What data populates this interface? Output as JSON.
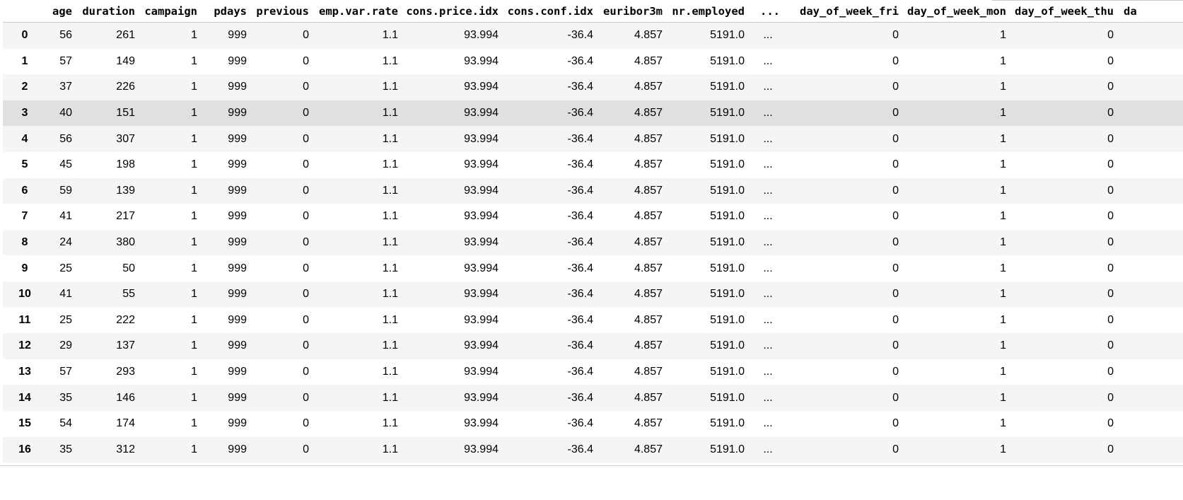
{
  "table": {
    "columns": [
      "",
      "age",
      "duration",
      "campaign",
      "pdays",
      "previous",
      "emp.var.rate",
      "cons.price.idx",
      "cons.conf.idx",
      "euribor3m",
      "nr.employed",
      "...",
      "day_of_week_fri",
      "day_of_week_mon",
      "day_of_week_thu",
      "da"
    ],
    "rows": [
      [
        "0",
        "56",
        "261",
        "1",
        "999",
        "0",
        "1.1",
        "93.994",
        "-36.4",
        "4.857",
        "5191.0",
        "...",
        "0",
        "1",
        "0",
        ""
      ],
      [
        "1",
        "57",
        "149",
        "1",
        "999",
        "0",
        "1.1",
        "93.994",
        "-36.4",
        "4.857",
        "5191.0",
        "...",
        "0",
        "1",
        "0",
        ""
      ],
      [
        "2",
        "37",
        "226",
        "1",
        "999",
        "0",
        "1.1",
        "93.994",
        "-36.4",
        "4.857",
        "5191.0",
        "...",
        "0",
        "1",
        "0",
        ""
      ],
      [
        "3",
        "40",
        "151",
        "1",
        "999",
        "0",
        "1.1",
        "93.994",
        "-36.4",
        "4.857",
        "5191.0",
        "...",
        "0",
        "1",
        "0",
        ""
      ],
      [
        "4",
        "56",
        "307",
        "1",
        "999",
        "0",
        "1.1",
        "93.994",
        "-36.4",
        "4.857",
        "5191.0",
        "...",
        "0",
        "1",
        "0",
        ""
      ],
      [
        "5",
        "45",
        "198",
        "1",
        "999",
        "0",
        "1.1",
        "93.994",
        "-36.4",
        "4.857",
        "5191.0",
        "...",
        "0",
        "1",
        "0",
        ""
      ],
      [
        "6",
        "59",
        "139",
        "1",
        "999",
        "0",
        "1.1",
        "93.994",
        "-36.4",
        "4.857",
        "5191.0",
        "...",
        "0",
        "1",
        "0",
        ""
      ],
      [
        "7",
        "41",
        "217",
        "1",
        "999",
        "0",
        "1.1",
        "93.994",
        "-36.4",
        "4.857",
        "5191.0",
        "...",
        "0",
        "1",
        "0",
        ""
      ],
      [
        "8",
        "24",
        "380",
        "1",
        "999",
        "0",
        "1.1",
        "93.994",
        "-36.4",
        "4.857",
        "5191.0",
        "...",
        "0",
        "1",
        "0",
        ""
      ],
      [
        "9",
        "25",
        "50",
        "1",
        "999",
        "0",
        "1.1",
        "93.994",
        "-36.4",
        "4.857",
        "5191.0",
        "...",
        "0",
        "1",
        "0",
        ""
      ],
      [
        "10",
        "41",
        "55",
        "1",
        "999",
        "0",
        "1.1",
        "93.994",
        "-36.4",
        "4.857",
        "5191.0",
        "...",
        "0",
        "1",
        "0",
        ""
      ],
      [
        "11",
        "25",
        "222",
        "1",
        "999",
        "0",
        "1.1",
        "93.994",
        "-36.4",
        "4.857",
        "5191.0",
        "...",
        "0",
        "1",
        "0",
        ""
      ],
      [
        "12",
        "29",
        "137",
        "1",
        "999",
        "0",
        "1.1",
        "93.994",
        "-36.4",
        "4.857",
        "5191.0",
        "...",
        "0",
        "1",
        "0",
        ""
      ],
      [
        "13",
        "57",
        "293",
        "1",
        "999",
        "0",
        "1.1",
        "93.994",
        "-36.4",
        "4.857",
        "5191.0",
        "...",
        "0",
        "1",
        "0",
        ""
      ],
      [
        "14",
        "35",
        "146",
        "1",
        "999",
        "0",
        "1.1",
        "93.994",
        "-36.4",
        "4.857",
        "5191.0",
        "...",
        "0",
        "1",
        "0",
        ""
      ],
      [
        "15",
        "54",
        "174",
        "1",
        "999",
        "0",
        "1.1",
        "93.994",
        "-36.4",
        "4.857",
        "5191.0",
        "...",
        "0",
        "1",
        "0",
        ""
      ],
      [
        "16",
        "35",
        "312",
        "1",
        "999",
        "0",
        "1.1",
        "93.994",
        "-36.4",
        "4.857",
        "5191.0",
        "...",
        "0",
        "1",
        "0",
        ""
      ]
    ],
    "hover_row": 3
  },
  "colors": {
    "stripe": "#f5f5f5",
    "hover": "#e0e0e0",
    "border": "#c8c8c8"
  }
}
